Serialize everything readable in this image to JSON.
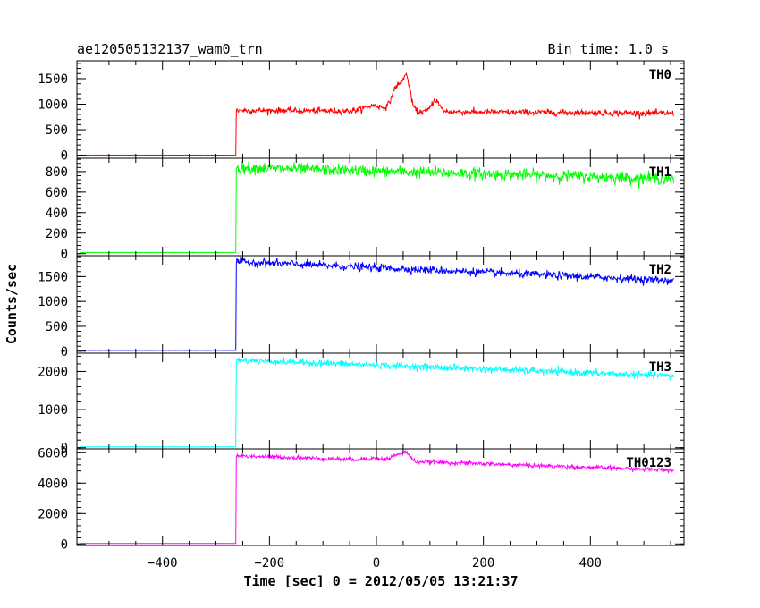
{
  "chart_data": {
    "type": "line",
    "title": "ae120505132137_wam0_trn",
    "subtitle": "Bin time: 1.0 s",
    "xlabel": "Time [sec] 0 = 2012/05/05 13:21:37",
    "ylabel": "Counts/sec",
    "xlim": [
      -560,
      575
    ],
    "x_ticks": [
      -400,
      -200,
      0,
      200,
      400
    ],
    "x_tick_labels": [
      "−400",
      "−200",
      "0",
      "200",
      "400"
    ],
    "x_start": -553,
    "x_end": 556,
    "x_step": 1,
    "onset_x": -262,
    "grid": false,
    "panels": [
      {
        "name": "TH0",
        "color": "#ff0000",
        "ylim": [
          -60,
          1850
        ],
        "y_ticks": [
          0,
          500,
          1000,
          1500
        ],
        "y_tick_labels": [
          "0",
          "500",
          "1000",
          "1500"
        ],
        "pre_level": 0,
        "level_start": 880,
        "level_end": 820,
        "noise": 30,
        "bursts": [
          {
            "center": 38,
            "width": 9,
            "amp": 480
          },
          {
            "center": 56,
            "width": 7,
            "amp": 640
          },
          {
            "center": 110,
            "width": 7,
            "amp": 230
          },
          {
            "center": -5,
            "width": 18,
            "amp": 110
          }
        ]
      },
      {
        "name": "TH1",
        "color": "#00ff00",
        "ylim": [
          -20,
          930
        ],
        "y_ticks": [
          0,
          200,
          400,
          600,
          800
        ],
        "y_tick_labels": [
          "0",
          "200",
          "400",
          "600",
          "800"
        ],
        "pre_level": 10,
        "level_start": 840,
        "level_end": 730,
        "noise": 28,
        "bursts": []
      },
      {
        "name": "TH2",
        "color": "#0000ff",
        "ylim": [
          -40,
          1920
        ],
        "y_ticks": [
          0,
          500,
          1000,
          1500
        ],
        "y_tick_labels": [
          "0",
          "500",
          "1000",
          "1500"
        ],
        "pre_level": 15,
        "level_start": 1800,
        "level_end": 1420,
        "noise": 40,
        "bursts": []
      },
      {
        "name": "TH3",
        "color": "#00ffff",
        "ylim": [
          -30,
          2480
        ],
        "y_ticks": [
          0,
          1000,
          2000
        ],
        "y_tick_labels": [
          "0",
          "1000",
          "2000"
        ],
        "pre_level": 20,
        "level_start": 2300,
        "level_end": 1880,
        "noise": 45,
        "bursts": []
      },
      {
        "name": "TH0123",
        "color": "#ff00ff",
        "ylim": [
          -100,
          6250
        ],
        "y_ticks": [
          0,
          2000,
          4000,
          6000
        ],
        "y_tick_labels": [
          "0",
          "2000",
          "4000",
          "6000"
        ],
        "pre_level": 30,
        "level_start": 5800,
        "level_end": 4850,
        "noise": 70,
        "bursts": [
          {
            "center": 38,
            "width": 10,
            "amp": 380
          },
          {
            "center": 56,
            "width": 7,
            "amp": 520
          },
          {
            "center": -5,
            "width": 18,
            "amp": 120
          }
        ]
      }
    ]
  }
}
